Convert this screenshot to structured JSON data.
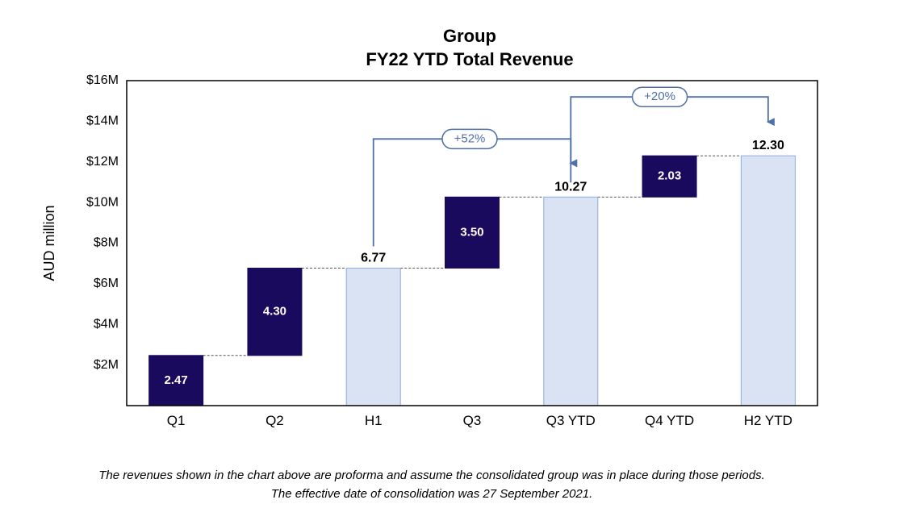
{
  "chart_data": {
    "type": "bar",
    "subtype": "waterfall",
    "title_lines": [
      "Group",
      "FY22 YTD Total Revenue"
    ],
    "ylabel": "AUD million",
    "ylim": [
      0,
      16
    ],
    "yticks": [
      2,
      4,
      6,
      8,
      10,
      12,
      14,
      16
    ],
    "ytick_labels": [
      "$2M",
      "$4M",
      "$6M",
      "$8M",
      "$10M",
      "$12M",
      "$14M",
      "$16M"
    ],
    "grid": false,
    "categories": [
      "Q1",
      "Q2",
      "H1",
      "Q3",
      "Q3 YTD",
      "Q4 YTD",
      "H2 YTD"
    ],
    "bars": [
      {
        "category": "Q1",
        "kind": "increment",
        "start": 0,
        "value": 2.47,
        "label": "2.47"
      },
      {
        "category": "Q2",
        "kind": "increment",
        "start": 2.47,
        "value": 4.3,
        "label": "4.30"
      },
      {
        "category": "H1",
        "kind": "total",
        "start": 0,
        "value": 6.77,
        "label": "6.77"
      },
      {
        "category": "Q3",
        "kind": "increment",
        "start": 6.77,
        "value": 3.5,
        "label": "3.50"
      },
      {
        "category": "Q3 YTD",
        "kind": "total",
        "start": 0,
        "value": 10.27,
        "label": "10.27"
      },
      {
        "category": "Q4 YTD",
        "kind": "increment",
        "start": 10.27,
        "value": 2.03,
        "label": "2.03"
      },
      {
        "category": "H2 YTD",
        "kind": "total",
        "start": 0,
        "value": 12.3,
        "label": "12.30"
      }
    ],
    "annotations": [
      {
        "from": "H1",
        "to": "Q3 YTD",
        "text": "+52%"
      },
      {
        "from": "Q3 YTD",
        "to": "H2 YTD",
        "text": "+20%"
      }
    ],
    "colors": {
      "increment": "#1a0a5e",
      "total": "#dae3f3",
      "total_border": "#8faadc",
      "annotation": "#4f6fa8"
    }
  },
  "footnote_lines": [
    "The revenues shown in the chart above are proforma and assume the consolidated group was in place during those periods.",
    "The effective date of consolidation was 27 September 2021."
  ]
}
